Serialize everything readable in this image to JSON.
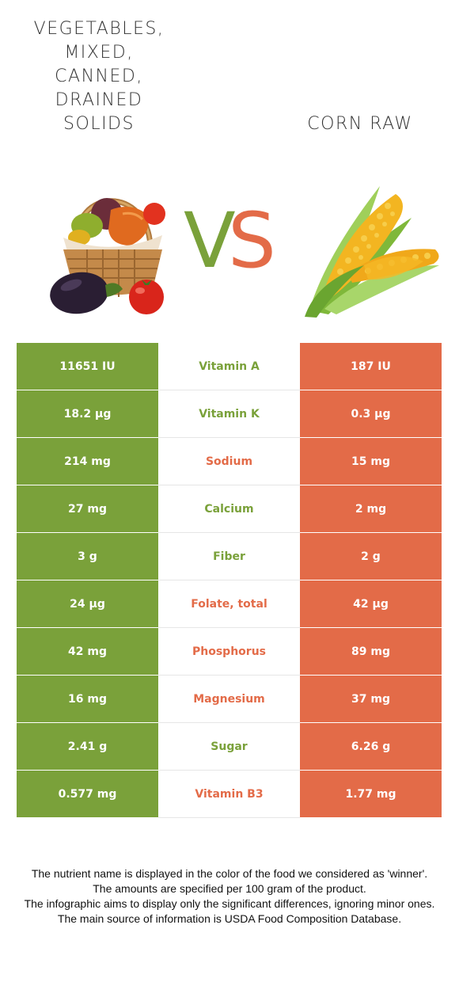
{
  "left_food": {
    "title_lines": [
      "VEGETABLES,",
      "MIXED,",
      "CANNED,",
      "DRAINED",
      "SOLIDS"
    ],
    "color": "#7aa13a"
  },
  "right_food": {
    "title": "CORN RAW",
    "color": "#e36b48"
  },
  "vs": {
    "v": "V",
    "s": "S"
  },
  "rows": [
    {
      "left": "11651 IU",
      "nutrient": "Vitamin A",
      "right": "187 IU",
      "winner": "left"
    },
    {
      "left": "18.2 µg",
      "nutrient": "Vitamin K",
      "right": "0.3 µg",
      "winner": "left"
    },
    {
      "left": "214 mg",
      "nutrient": "Sodium",
      "right": "15 mg",
      "winner": "right"
    },
    {
      "left": "27 mg",
      "nutrient": "Calcium",
      "right": "2 mg",
      "winner": "left"
    },
    {
      "left": "3 g",
      "nutrient": "Fiber",
      "right": "2 g",
      "winner": "left"
    },
    {
      "left": "24 µg",
      "nutrient": "Folate, total",
      "right": "42 µg",
      "winner": "right"
    },
    {
      "left": "42 mg",
      "nutrient": "Phosphorus",
      "right": "89 mg",
      "winner": "right"
    },
    {
      "left": "16 mg",
      "nutrient": "Magnesium",
      "right": "37 mg",
      "winner": "right"
    },
    {
      "left": "2.41 g",
      "nutrient": "Sugar",
      "right": "6.26 g",
      "winner": "left"
    },
    {
      "left": "0.577 mg",
      "nutrient": "Vitamin B3",
      "right": "1.77 mg",
      "winner": "right"
    }
  ],
  "footer": [
    "The nutrient name is displayed in the color of the food we considered as 'winner'.",
    "The amounts are specified per 100 gram of the product.",
    "The infographic aims to display only the significant differences, ignoring minor ones.",
    "The main source of information is USDA Food Composition Database."
  ]
}
